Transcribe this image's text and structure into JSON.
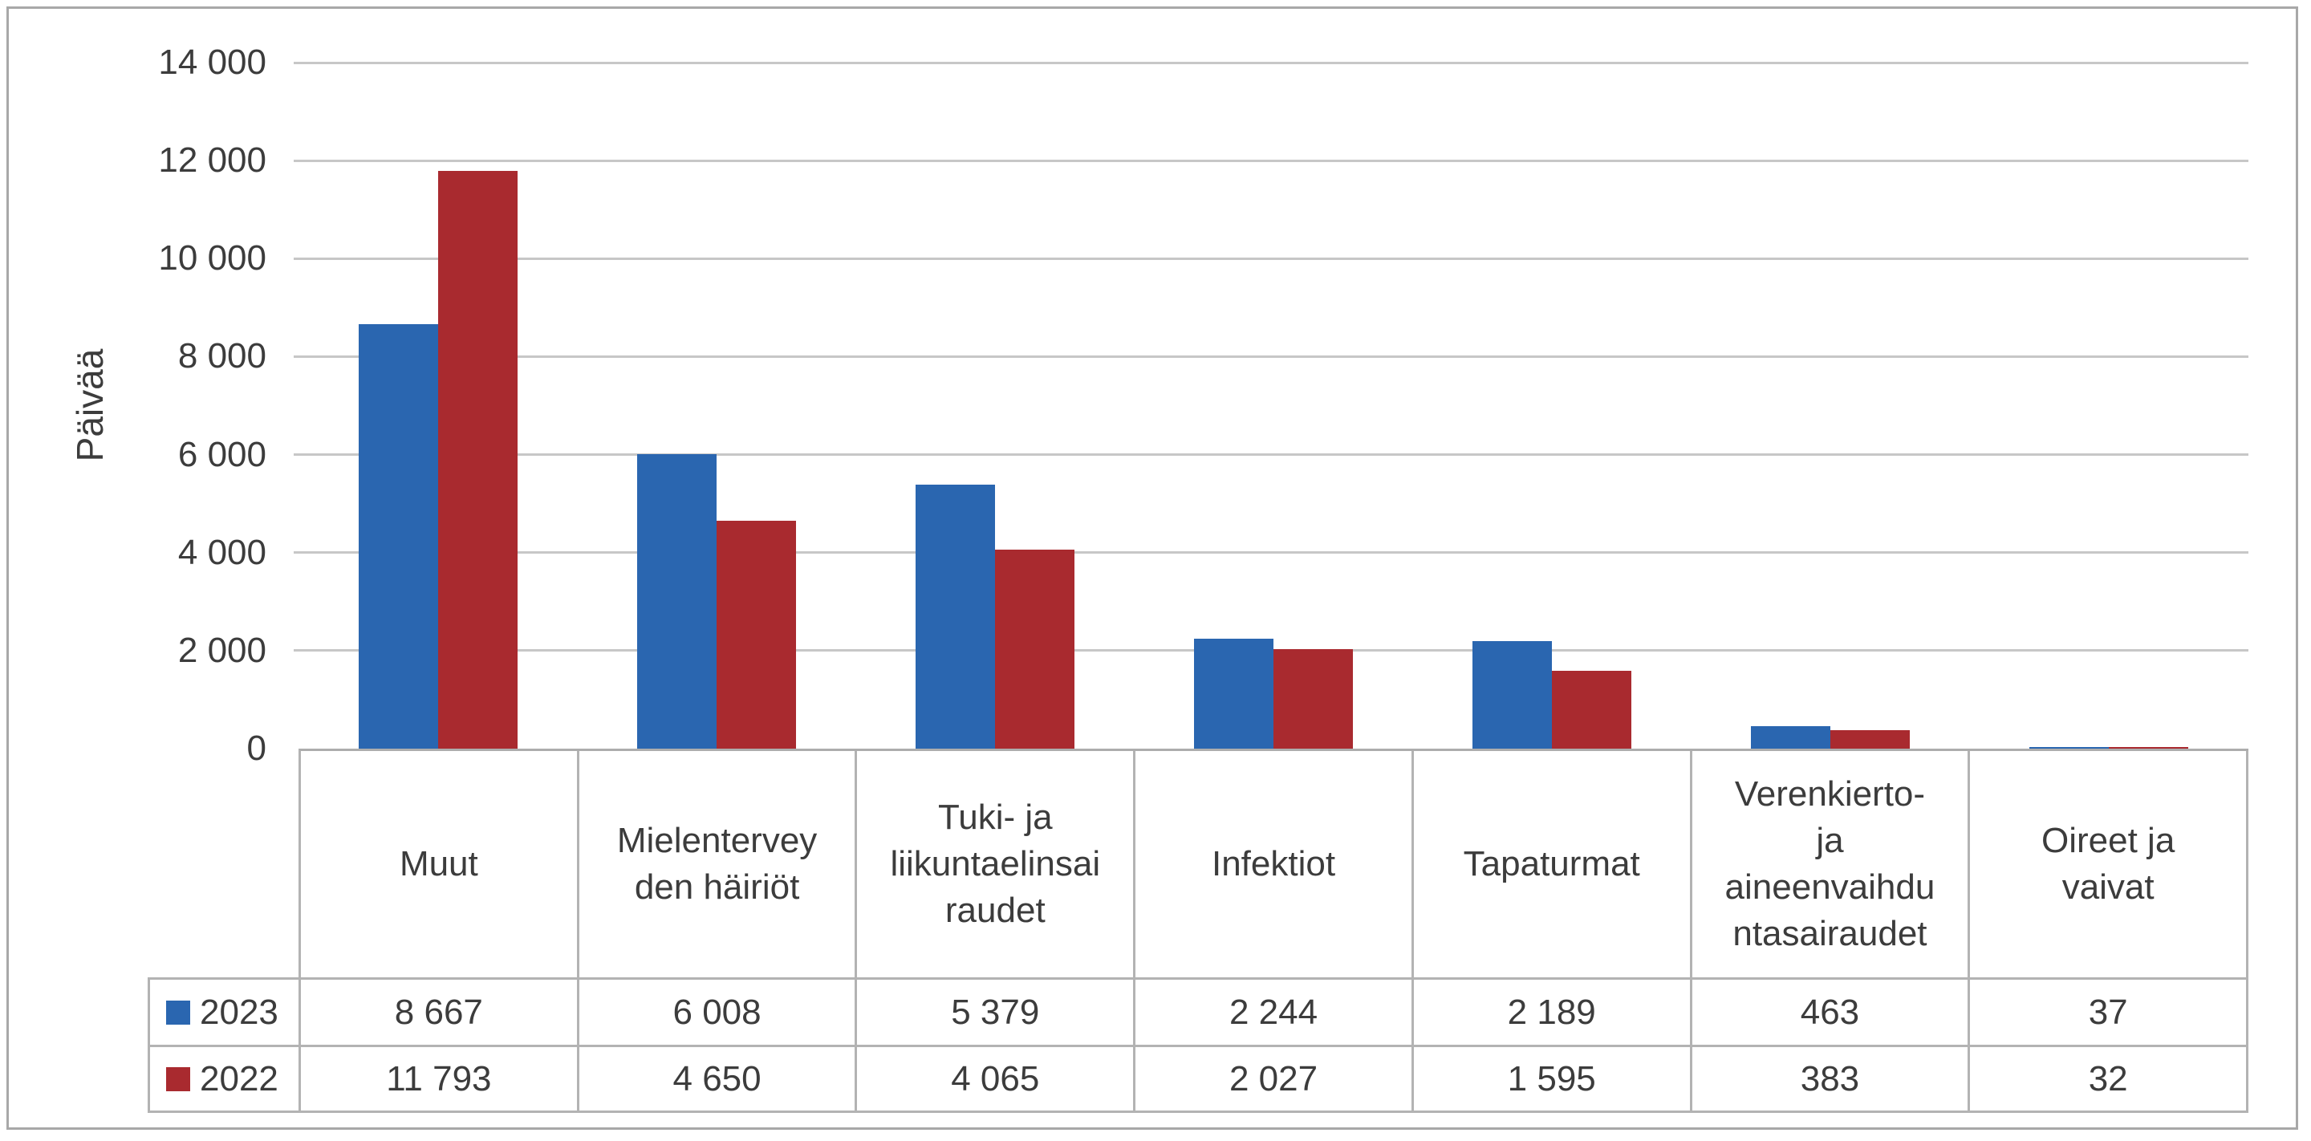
{
  "colors": {
    "series_2023": "#2A66B0",
    "series_2022": "#A92A2F",
    "gridline": "#C7C7C7",
    "table_border": "#B3B3B3",
    "frame_border": "#A8A8A8",
    "text": "#3C3C3C"
  },
  "chart_data": {
    "type": "bar",
    "title": "",
    "xlabel": "",
    "ylabel": "Päivää",
    "ylim": [
      0,
      14000
    ],
    "ytick_step": 2000,
    "yticks": [
      0,
      2000,
      4000,
      6000,
      8000,
      10000,
      12000,
      14000
    ],
    "yticks_display": [
      "0",
      "2 000",
      "4 000",
      "6 000",
      "8 000",
      "10 000",
      "12 000",
      "14 000"
    ],
    "grid": true,
    "legend_position": "data-table-left",
    "categories": [
      "Muut",
      "Mielenterveyden häiriöt",
      "Tuki- ja liikuntaelinsairaudet",
      "Infektiot",
      "Tapaturmat",
      "Verenkierto- ja aineenvaihduntasairaudet",
      "Oireet ja vaivat"
    ],
    "category_label_lines": [
      [
        "Muut"
      ],
      [
        "Mielentervey",
        "den häiriöt"
      ],
      [
        "Tuki- ja",
        "liikuntaelinsai",
        "raudet"
      ],
      [
        "Infektiot"
      ],
      [
        "Tapaturmat"
      ],
      [
        "Verenkierto-",
        "ja",
        "aineenvaihdu",
        "ntasairaudet"
      ],
      [
        "Oireet ja",
        "vaivat"
      ]
    ],
    "series": [
      {
        "name": "2023",
        "color": "#2A66B0",
        "values": [
          8667,
          6008,
          5379,
          2244,
          2189,
          463,
          37
        ],
        "values_display": [
          "8 667",
          "6 008",
          "5 379",
          "2 244",
          "2 189",
          "463",
          "37"
        ]
      },
      {
        "name": "2022",
        "color": "#A92A2F",
        "values": [
          11793,
          4650,
          4065,
          2027,
          1595,
          383,
          32
        ],
        "values_display": [
          "11 793",
          "4 650",
          "4 065",
          "2 027",
          "1 595",
          "383",
          "32"
        ]
      }
    ]
  }
}
